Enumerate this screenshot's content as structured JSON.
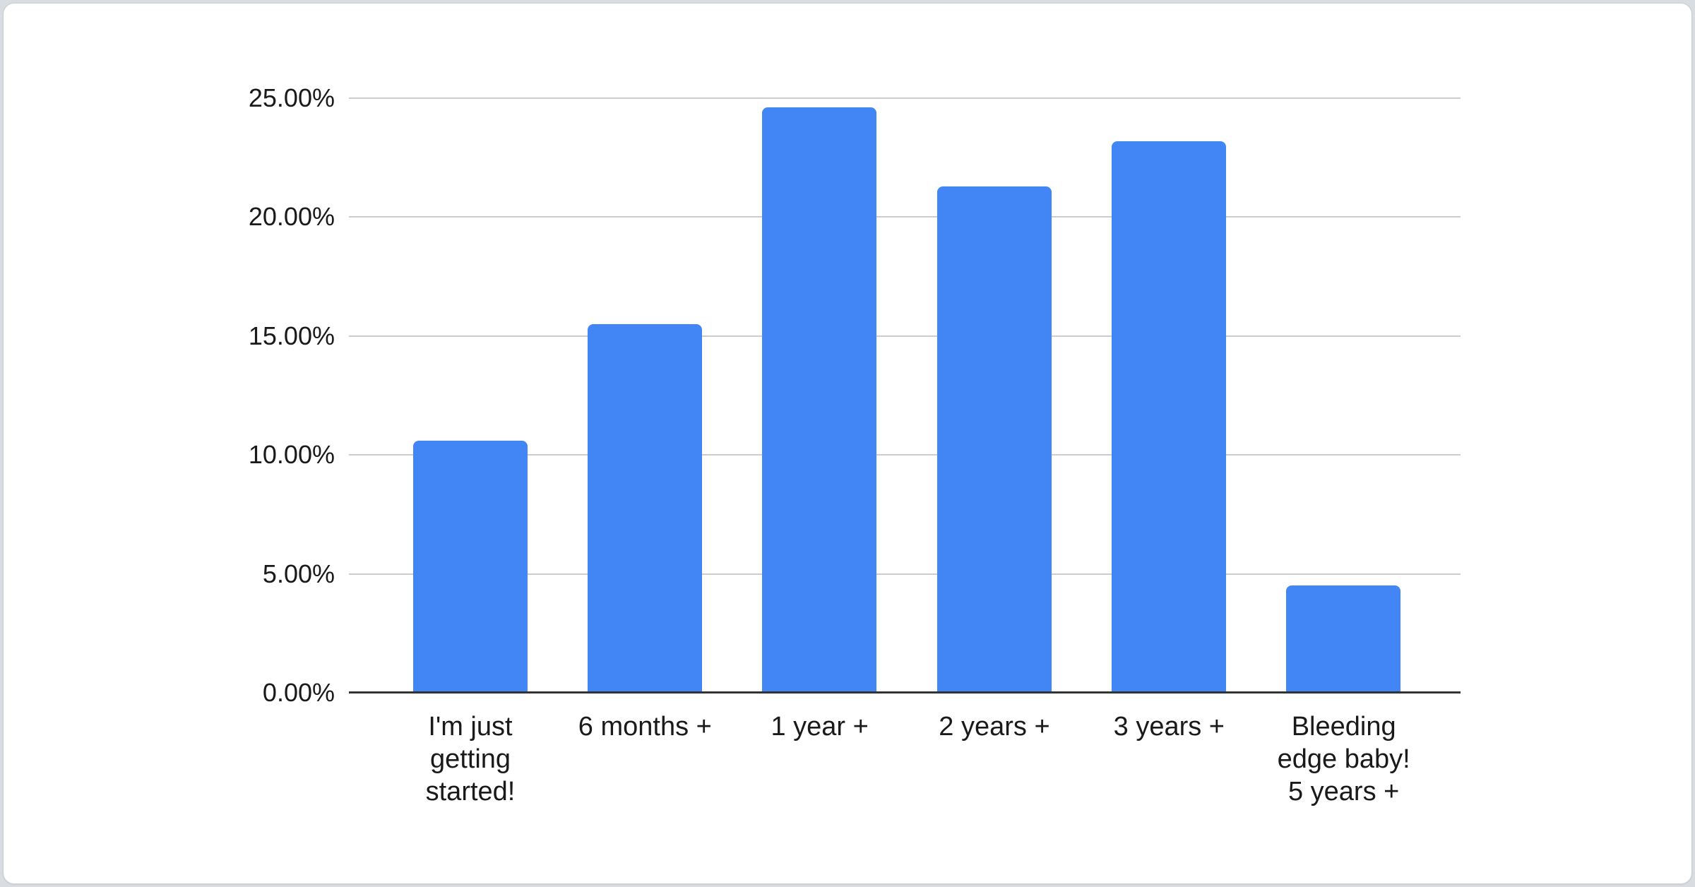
{
  "chart_data": {
    "type": "bar",
    "title": "",
    "xlabel": "",
    "ylabel": "",
    "categories": [
      "I'm just getting started!",
      "6 months +",
      "1 year +",
      "2 years +",
      "3 years +",
      "Bleeding edge baby! 5 years +"
    ],
    "category_display_lines": [
      "I'm just\ngetting\nstarted!",
      "6 months +",
      "1 year +",
      "2 years +",
      "3 years +",
      "Bleeding\nedge baby!\n5 years +"
    ],
    "values": [
      10.6,
      15.5,
      24.6,
      21.3,
      23.2,
      4.5
    ],
    "unit": "%",
    "ylim": [
      0,
      25
    ],
    "y_ticks": [
      {
        "value": 0,
        "label": "0.00%"
      },
      {
        "value": 5,
        "label": "5.00%"
      },
      {
        "value": 10,
        "label": "10.00%"
      },
      {
        "value": 15,
        "label": "15.00%"
      },
      {
        "value": 20,
        "label": "20.00%"
      },
      {
        "value": 25,
        "label": "25.00%"
      }
    ],
    "grid": true,
    "legend": "none",
    "bar_color": "#4285F4",
    "colors": {
      "background": "#d9dce0",
      "card_background": "#ffffff",
      "card_border": "#c9cdd2",
      "gridline": "#cccccc",
      "axis_line": "#333333",
      "label_text": "#1a1a1a"
    }
  }
}
